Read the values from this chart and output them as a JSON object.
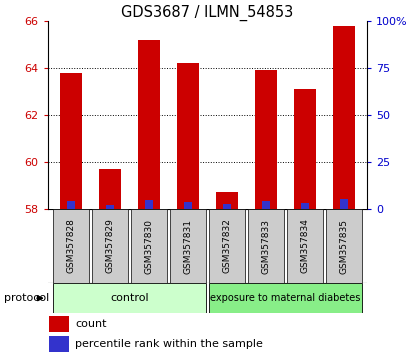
{
  "title": "GDS3687 / ILMN_54853",
  "samples": [
    "GSM357828",
    "GSM357829",
    "GSM357830",
    "GSM357831",
    "GSM357832",
    "GSM357833",
    "GSM357834",
    "GSM357835"
  ],
  "count_values": [
    63.8,
    59.7,
    65.2,
    64.2,
    58.7,
    63.9,
    63.1,
    65.8
  ],
  "percentile_values": [
    4.0,
    2.0,
    4.5,
    3.5,
    2.5,
    4.0,
    3.0,
    5.0
  ],
  "ymin": 58,
  "ymax": 66,
  "yticks": [
    58,
    60,
    62,
    64,
    66
  ],
  "y2ticks": [
    0,
    25,
    50,
    75,
    100
  ],
  "y2labels": [
    "0",
    "25",
    "50",
    "75",
    "100%"
  ],
  "bar_width": 0.55,
  "count_color": "#cc0000",
  "percentile_color": "#3333cc",
  "control_group_indices": [
    0,
    1,
    2,
    3
  ],
  "diabetes_group_indices": [
    4,
    5,
    6,
    7
  ],
  "control_label": "control",
  "diabetes_label": "exposure to maternal diabetes",
  "protocol_label": "protocol",
  "legend_count": "count",
  "legend_percentile": "percentile rank within the sample",
  "control_color": "#ccffcc",
  "diabetes_color": "#88ee88",
  "sample_box_color": "#cccccc",
  "tick_color_left": "#cc0000",
  "tick_color_right": "#0000cc",
  "title_fontsize": 10.5,
  "tick_fontsize": 8,
  "sample_fontsize": 6.5,
  "legend_fontsize": 8,
  "group_fontsize": 8
}
